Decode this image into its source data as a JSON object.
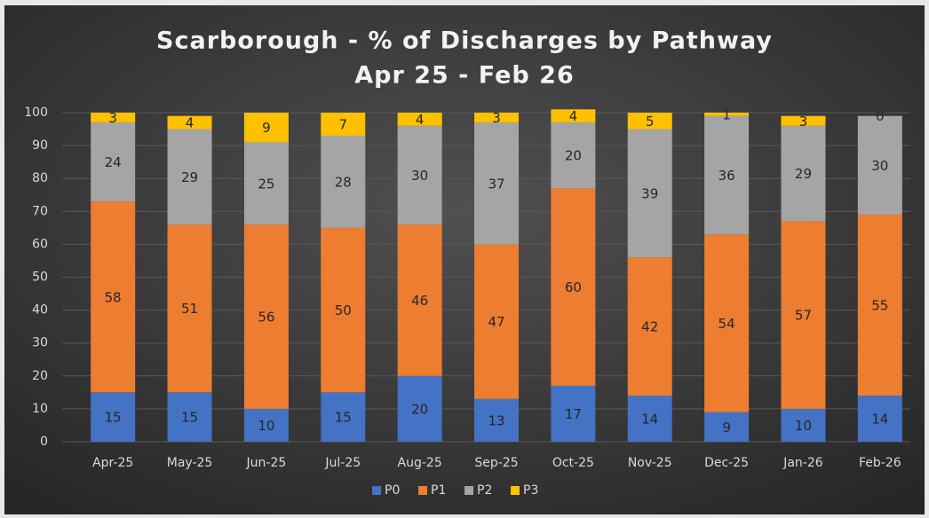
{
  "chart_data": {
    "type": "stacked_bar",
    "title": "Scarborough - % of Discharges by Pathway",
    "subtitle": "Apr 25 - Feb 26",
    "categories": [
      "Apr-25",
      "May-25",
      "Jun-25",
      "Jul-25",
      "Aug-25",
      "Sep-25",
      "Oct-25",
      "Nov-25",
      "Dec-25",
      "Jan-26",
      "Feb-26"
    ],
    "series": [
      {
        "name": "P0",
        "color": "#4472c4",
        "values": [
          15,
          15,
          10,
          15,
          20,
          13,
          17,
          14,
          9,
          10,
          14
        ]
      },
      {
        "name": "P1",
        "color": "#ed7d31",
        "values": [
          58,
          51,
          56,
          50,
          46,
          47,
          60,
          42,
          54,
          57,
          55
        ]
      },
      {
        "name": "P2",
        "color": "#a5a5a5",
        "values": [
          24,
          29,
          25,
          28,
          30,
          37,
          20,
          39,
          36,
          29,
          30
        ]
      },
      {
        "name": "P3",
        "color": "#ffc000",
        "values": [
          3,
          4,
          9,
          7,
          4,
          3,
          4,
          5,
          1,
          3,
          0
        ]
      }
    ],
    "ylim": [
      0,
      100
    ],
    "yticks": [
      0,
      10,
      20,
      30,
      40,
      50,
      60,
      70,
      80,
      90,
      100
    ],
    "grid": true,
    "legend": "bottom"
  }
}
